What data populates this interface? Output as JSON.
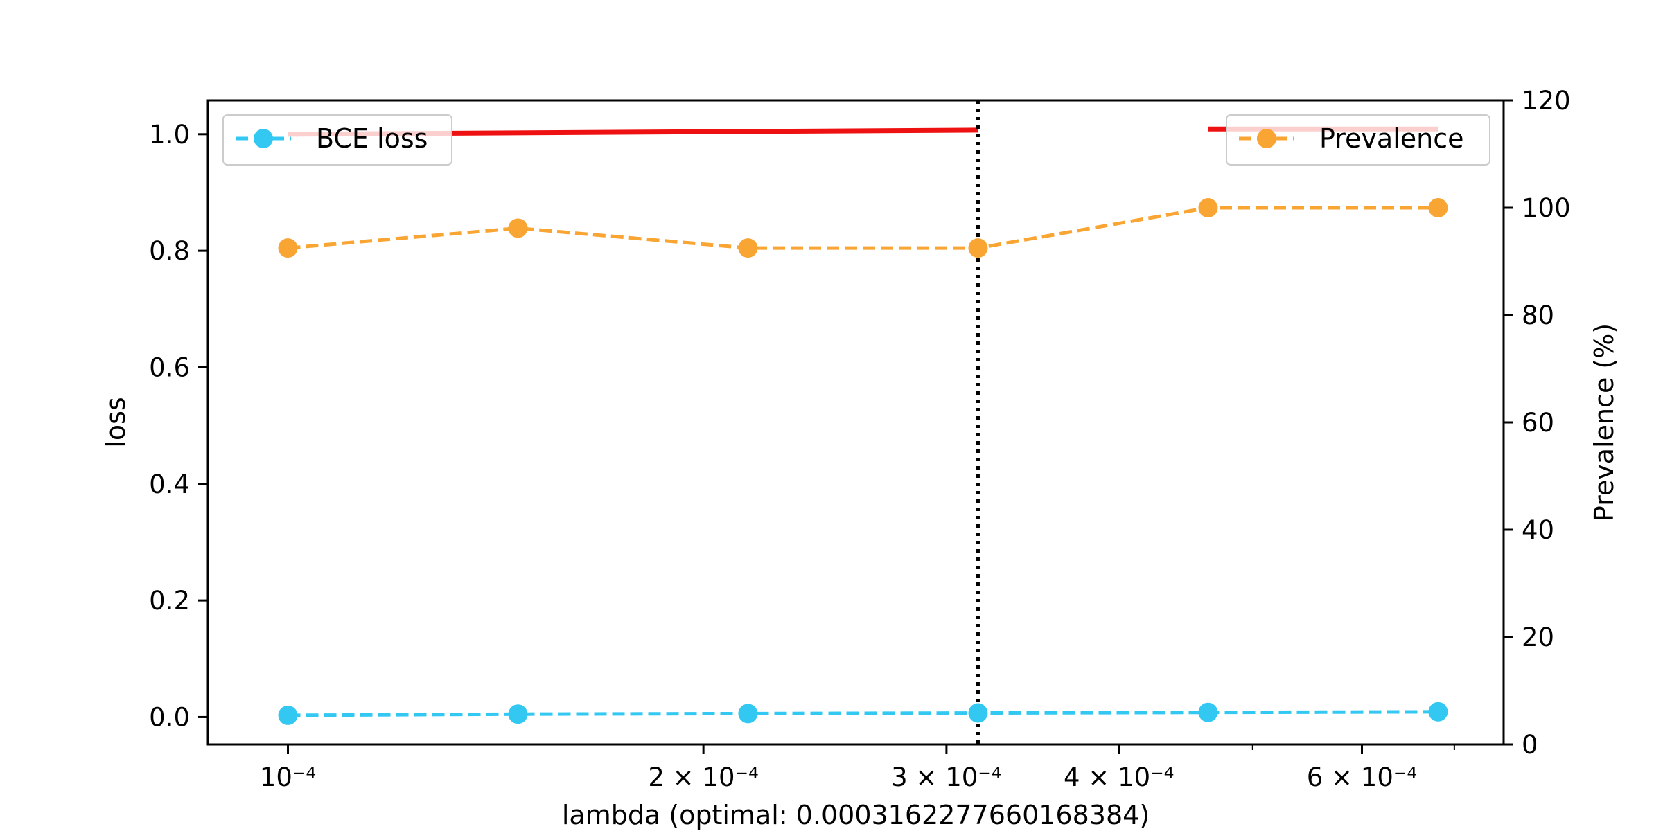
{
  "chart_data": {
    "type": "line",
    "title": "",
    "xlabel": "lambda (optimal: 0.0003162277660168384)",
    "ylabel_left": "loss",
    "ylabel_right": "Prevalence (%)",
    "x_scale": "log",
    "xlim": [
      8.75e-05,
      0.00076
    ],
    "ylim_left": [
      -0.047,
      1.058
    ],
    "ylim_right": [
      0,
      120
    ],
    "x_ticks": [
      {
        "value": 0.0001,
        "label": "10⁻⁴"
      },
      {
        "value": 0.0002,
        "label": "2 × 10⁻⁴"
      },
      {
        "value": 0.0003,
        "label": "3 × 10⁻⁴"
      },
      {
        "value": 0.0004,
        "label": "4 × 10⁻⁴"
      },
      {
        "value": 0.0006,
        "label": "6 × 10⁻⁴"
      }
    ],
    "x_minor_ticks": [
      0.0005,
      0.0007
    ],
    "y_ticks_left": [
      "0.0",
      "0.2",
      "0.4",
      "0.6",
      "0.8",
      "1.0"
    ],
    "y_ticks_right": [
      "0",
      "20",
      "40",
      "60",
      "80",
      "100",
      "120"
    ],
    "x": [
      0.0001,
      0.00014678,
      0.00021544,
      0.00031623,
      0.00046416,
      0.00068129
    ],
    "optimal_lambda": 0.0003162277660168384,
    "series": [
      {
        "name": "BCE loss",
        "axis": "left",
        "color": "#33c8f2",
        "style": "dashed",
        "marker": "circle",
        "values": [
          0.003,
          0.005,
          0.006,
          0.007,
          0.008,
          0.009
        ]
      },
      {
        "name": "Prevalence",
        "axis": "right",
        "color": "#f9a534",
        "style": "dashed",
        "marker": "circle",
        "values": [
          92.5,
          96.2,
          92.5,
          92.5,
          100,
          100
        ]
      }
    ],
    "red_line_segments": [
      {
        "x": [
          0.0001,
          0.00031623
        ],
        "y_left": [
          1.0,
          1.007
        ]
      },
      {
        "x": [
          0.00046416,
          0.00068129
        ],
        "y_left": [
          1.009,
          1.009
        ]
      }
    ],
    "red_color": "#ee1111",
    "legend_left": {
      "placement": "upper-left",
      "label": "BCE loss"
    },
    "legend_right": {
      "placement": "upper-right",
      "label": "Prevalence"
    },
    "grid": false
  }
}
